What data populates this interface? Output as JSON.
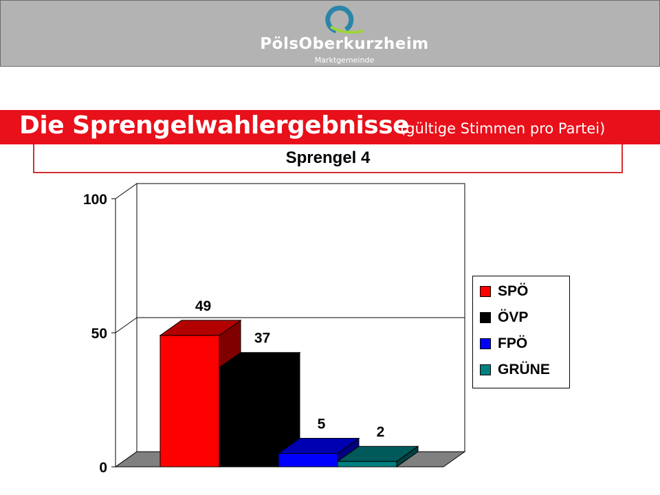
{
  "header": {
    "logo_name": "PölsOberkurzheim",
    "logo_subtitle": "Marktgemeinde"
  },
  "title": {
    "main": "Die Sprengelwahlergebnisse",
    "sub": "(gültige Stimmen pro Partei)"
  },
  "subtitle": "Sprengel 4",
  "colors": {
    "title_bar": "#e8101a",
    "SPÖ": "#ff0000",
    "ÖVP": "#000000",
    "FPÖ": "#0000ff",
    "GRÜNE": "#008080"
  },
  "chart_data": {
    "type": "bar",
    "categories": [
      "SPÖ",
      "ÖVP",
      "FPÖ",
      "GRÜNE"
    ],
    "values": [
      49,
      37,
      5,
      2
    ],
    "ylim": [
      0,
      100
    ],
    "yticks": [
      0,
      50,
      100
    ],
    "grid": true,
    "legend": "right",
    "legend_entries": [
      "SPÖ",
      "ÖVP",
      "FPÖ",
      "GRÜNE"
    ]
  }
}
